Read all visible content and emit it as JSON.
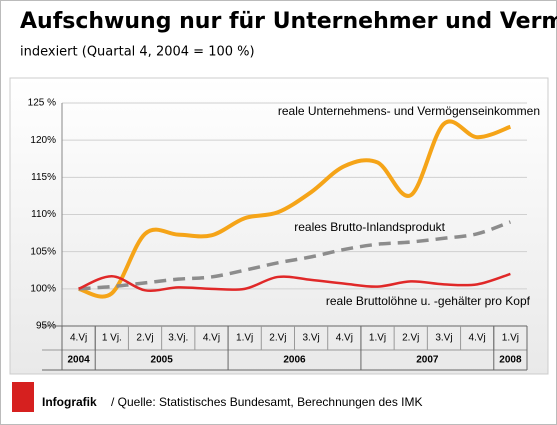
{
  "chart_data": {
    "type": "line",
    "title": "Aufschwung nur für Unternehmer und Vermögende",
    "subtitle": "indexiert (Quartal 4, 2004 = 100 %)",
    "categories": [
      "4.Vj",
      "1 Vj.",
      "2.Vj",
      "3.Vj.",
      "4.Vj",
      "1.Vj",
      "2.Vj",
      "3.Vj",
      "4.Vj",
      "1.Vj",
      "2.Vj",
      "3.Vj",
      "4.Vj",
      "1.Vj"
    ],
    "years": [
      "2004",
      "2005",
      "2006",
      "2007",
      "2008"
    ],
    "series": [
      {
        "name": "reale Unternehmens- und Vermögenseinkommen",
        "color": "#f5a418",
        "dash": false,
        "values": [
          100,
          99.4,
          107.4,
          107.3,
          107.2,
          109.5,
          110.3,
          113,
          116.5,
          117,
          112.6,
          122.2,
          120.4,
          121.8
        ]
      },
      {
        "name": "reales Brutto-Inlandsprodukt",
        "color": "#8c8c8c",
        "dash": true,
        "values": [
          100,
          100.3,
          100.8,
          101.3,
          101.6,
          102.5,
          103.5,
          104.3,
          105.3,
          106,
          106.3,
          106.8,
          107.4,
          109
        ]
      },
      {
        "name": "reale Bruttolöhne u. -gehälter pro Kopf",
        "color": "#e02828",
        "dash": false,
        "values": [
          100,
          101.7,
          99.8,
          100.2,
          100,
          100,
          101.6,
          101.2,
          100.7,
          100.3,
          101,
          100.6,
          100.6,
          102
        ]
      }
    ],
    "ylim": [
      95,
      125
    ],
    "yticks": [
      {
        "value": 95,
        "label": "95%"
      },
      {
        "value": 100,
        "label": "100%"
      },
      {
        "value": 105,
        "label": "105%"
      },
      {
        "value": 110,
        "label": "110%"
      },
      {
        "value": 115,
        "label": "115%"
      },
      {
        "value": 120,
        "label": "120%"
      },
      {
        "value": 125,
        "label": "125 %"
      }
    ],
    "grid": true,
    "footer_label": "Infografik",
    "source": "/ Quelle: Statistisches Bundesamt, Berechnungen des IMK"
  }
}
